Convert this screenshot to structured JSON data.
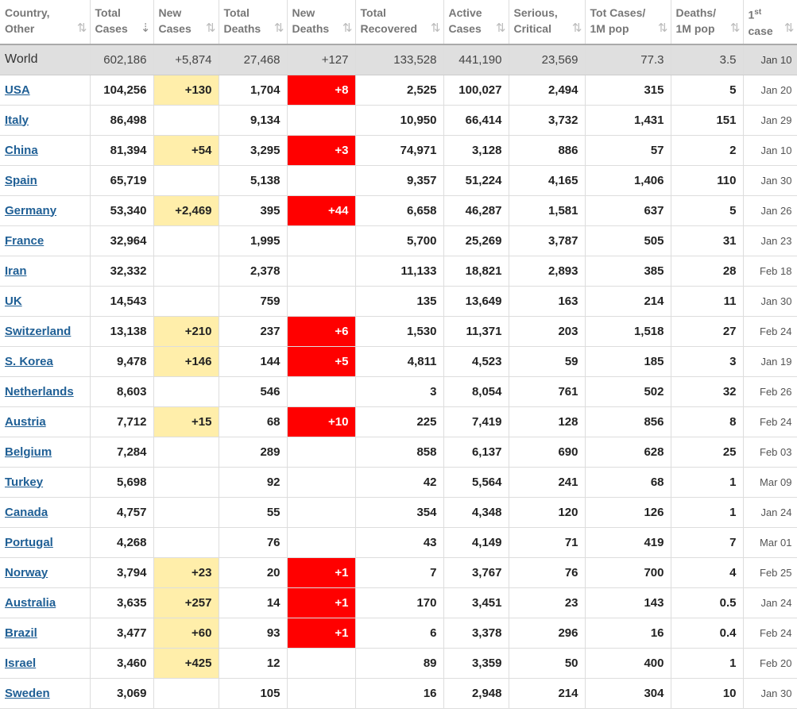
{
  "headers": [
    {
      "label": "Country,\nOther",
      "active": false
    },
    {
      "label": "Total\nCases",
      "active": true
    },
    {
      "label": "New\nCases",
      "active": false
    },
    {
      "label": "Total\nDeaths",
      "active": false
    },
    {
      "label": "New\nDeaths",
      "active": false
    },
    {
      "label": "Total\nRecovered",
      "active": false
    },
    {
      "label": "Active\nCases",
      "active": false
    },
    {
      "label": "Serious,\nCritical",
      "active": false
    },
    {
      "label": "Tot Cases/\n1M pop",
      "active": false
    },
    {
      "label": "Deaths/\n1M pop",
      "active": false
    },
    {
      "label": "1st\ncase",
      "active": false
    }
  ],
  "sort_icon": "⇅",
  "sort_icon_active": "⇣",
  "world": [
    "World",
    "602,186",
    "+5,874",
    "27,468",
    "+127",
    "133,528",
    "441,190",
    "23,569",
    "77.3",
    "3.5",
    "Jan 10"
  ],
  "rows": [
    [
      "USA",
      "104,256",
      "+130",
      "1,704",
      "+8",
      "2,525",
      "100,027",
      "2,494",
      "315",
      "5",
      "Jan 20"
    ],
    [
      "Italy",
      "86,498",
      "",
      "9,134",
      "",
      "10,950",
      "66,414",
      "3,732",
      "1,431",
      "151",
      "Jan 29"
    ],
    [
      "China",
      "81,394",
      "+54",
      "3,295",
      "+3",
      "74,971",
      "3,128",
      "886",
      "57",
      "2",
      "Jan 10"
    ],
    [
      "Spain",
      "65,719",
      "",
      "5,138",
      "",
      "9,357",
      "51,224",
      "4,165",
      "1,406",
      "110",
      "Jan 30"
    ],
    [
      "Germany",
      "53,340",
      "+2,469",
      "395",
      "+44",
      "6,658",
      "46,287",
      "1,581",
      "637",
      "5",
      "Jan 26"
    ],
    [
      "France",
      "32,964",
      "",
      "1,995",
      "",
      "5,700",
      "25,269",
      "3,787",
      "505",
      "31",
      "Jan 23"
    ],
    [
      "Iran",
      "32,332",
      "",
      "2,378",
      "",
      "11,133",
      "18,821",
      "2,893",
      "385",
      "28",
      "Feb 18"
    ],
    [
      "UK",
      "14,543",
      "",
      "759",
      "",
      "135",
      "13,649",
      "163",
      "214",
      "11",
      "Jan 30"
    ],
    [
      "Switzerland",
      "13,138",
      "+210",
      "237",
      "+6",
      "1,530",
      "11,371",
      "203",
      "1,518",
      "27",
      "Feb 24"
    ],
    [
      "S. Korea",
      "9,478",
      "+146",
      "144",
      "+5",
      "4,811",
      "4,523",
      "59",
      "185",
      "3",
      "Jan 19"
    ],
    [
      "Netherlands",
      "8,603",
      "",
      "546",
      "",
      "3",
      "8,054",
      "761",
      "502",
      "32",
      "Feb 26"
    ],
    [
      "Austria",
      "7,712",
      "+15",
      "68",
      "+10",
      "225",
      "7,419",
      "128",
      "856",
      "8",
      "Feb 24"
    ],
    [
      "Belgium",
      "7,284",
      "",
      "289",
      "",
      "858",
      "6,137",
      "690",
      "628",
      "25",
      "Feb 03"
    ],
    [
      "Turkey",
      "5,698",
      "",
      "92",
      "",
      "42",
      "5,564",
      "241",
      "68",
      "1",
      "Mar 09"
    ],
    [
      "Canada",
      "4,757",
      "",
      "55",
      "",
      "354",
      "4,348",
      "120",
      "126",
      "1",
      "Jan 24"
    ],
    [
      "Portugal",
      "4,268",
      "",
      "76",
      "",
      "43",
      "4,149",
      "71",
      "419",
      "7",
      "Mar 01"
    ],
    [
      "Norway",
      "3,794",
      "+23",
      "20",
      "+1",
      "7",
      "3,767",
      "76",
      "700",
      "4",
      "Feb 25"
    ],
    [
      "Australia",
      "3,635",
      "+257",
      "14",
      "+1",
      "170",
      "3,451",
      "23",
      "143",
      "0.5",
      "Jan 24"
    ],
    [
      "Brazil",
      "3,477",
      "+60",
      "93",
      "+1",
      "6",
      "3,378",
      "296",
      "16",
      "0.4",
      "Feb 24"
    ],
    [
      "Israel",
      "3,460",
      "+425",
      "12",
      "",
      "89",
      "3,359",
      "50",
      "400",
      "1",
      "Feb 20"
    ],
    [
      "Sweden",
      "3,069",
      "",
      "105",
      "",
      "16",
      "2,948",
      "214",
      "304",
      "10",
      "Jan 30"
    ]
  ],
  "colors": {
    "new_cases_bg": "#ffeeaa",
    "new_deaths_bg": "#ff0000",
    "link": "#1f5f95",
    "world_bg": "#dfdfdf"
  }
}
